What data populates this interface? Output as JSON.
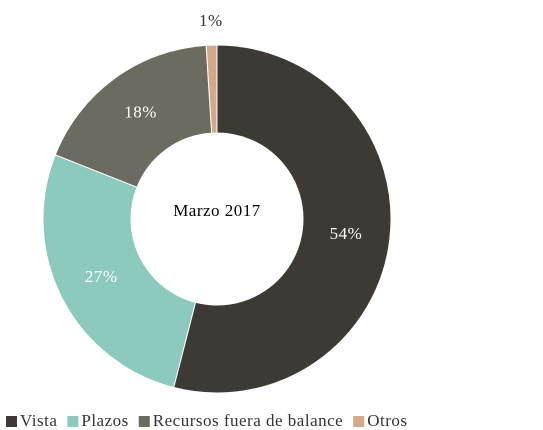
{
  "chart_data": {
    "type": "donut",
    "center_label": "Marzo 2017",
    "categories": [
      "Vista",
      "Plazos",
      "Recursos fuera de balance",
      "Otros"
    ],
    "values": [
      54,
      27,
      18,
      1
    ],
    "value_labels": [
      "54%",
      "27%",
      "18%",
      "1%"
    ],
    "colors": [
      "#3d3a35",
      "#8ccabd",
      "#6b6b60",
      "#d4a98a"
    ],
    "legend": "bottom"
  }
}
